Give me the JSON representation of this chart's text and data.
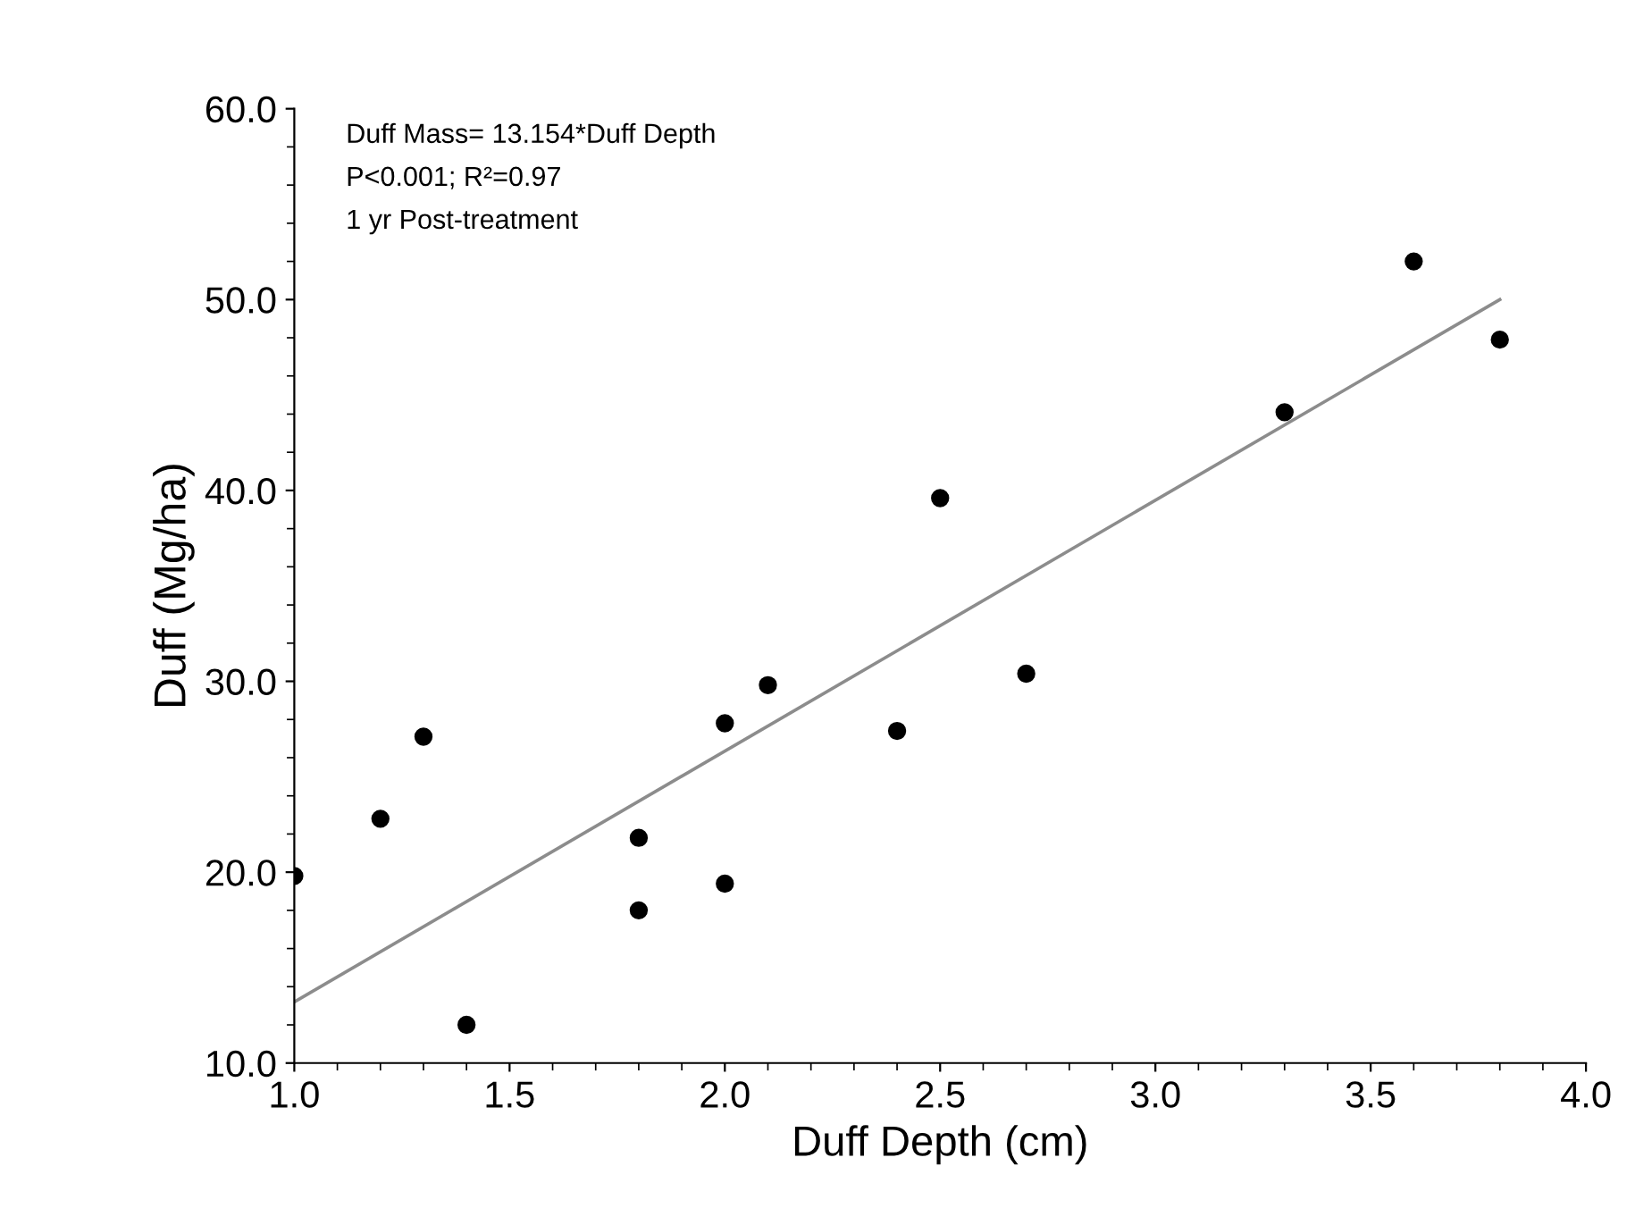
{
  "chart_data": {
    "type": "scatter",
    "xlabel": "Duff Depth (cm)",
    "ylabel": "Duff (Mg/ha)",
    "annotations": [
      "Duff Mass= 13.154*Duff Depth",
      "P<0.001; R²=0.97",
      "1 yr Post-treatment"
    ],
    "xlim": [
      1.0,
      4.0
    ],
    "ylim": [
      10.0,
      60.0
    ],
    "xticks": [
      {
        "value": 1.0,
        "label": "1.0"
      },
      {
        "value": 1.5,
        "label": "1.5"
      },
      {
        "value": 2.0,
        "label": "2.0"
      },
      {
        "value": 2.5,
        "label": "2.5"
      },
      {
        "value": 3.0,
        "label": "3.0"
      },
      {
        "value": 3.5,
        "label": "3.5"
      },
      {
        "value": 4.0,
        "label": "4.0"
      }
    ],
    "yticks": [
      {
        "value": 10,
        "label": "10.0"
      },
      {
        "value": 20,
        "label": "20.0"
      },
      {
        "value": 30,
        "label": "30.0"
      },
      {
        "value": 40,
        "label": "40.0"
      },
      {
        "value": 50,
        "label": "50.0"
      },
      {
        "value": 60,
        "label": "60.0"
      }
    ],
    "grid": false,
    "legend": false,
    "marker": "circle",
    "series": [
      {
        "color": "#000000",
        "x": [
          1.0,
          1.2,
          1.3,
          1.4,
          1.8,
          1.8,
          2.0,
          2.0,
          2.1,
          2.4,
          2.5,
          2.7,
          3.3,
          3.6,
          3.8
        ],
        "values": [
          19.8,
          22.8,
          27.1,
          12.0,
          21.8,
          18.0,
          27.8,
          19.4,
          29.8,
          27.4,
          39.6,
          30.4,
          44.1,
          52.0,
          47.9
        ]
      },
      {
        "type": "line",
        "color": "#8c8c8c",
        "line_style": "solid",
        "marker": "none",
        "x": [
          1.0,
          3.8
        ],
        "values": [
          13.2,
          50.0
        ]
      }
    ]
  }
}
